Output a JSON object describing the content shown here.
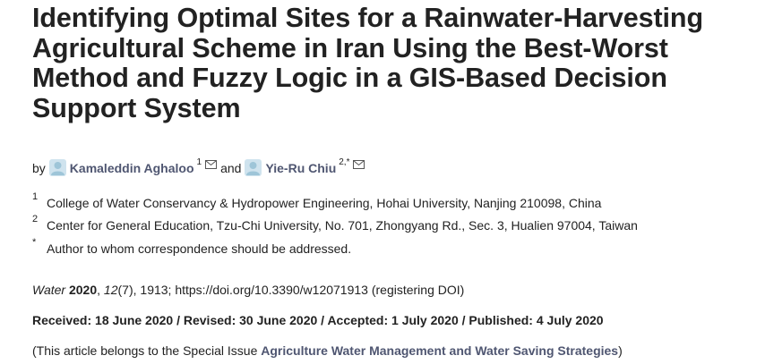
{
  "title": "Identifying Optimal Sites for a Rainwater-Harvesting Agricultural Scheme in Iran Using the Best-Worst Method and Fuzzy Logic in a GIS-Based Decision Support System",
  "authors": {
    "by": "by",
    "and": "and",
    "list": [
      {
        "name": "Kamaleddin Aghaloo",
        "sup": "1",
        "icon": "user-avatar-icon",
        "mail_icon": "envelope-icon"
      },
      {
        "name": "Yie-Ru Chiu",
        "sup": "2,*",
        "icon": "user-avatar-icon",
        "mail_icon": "envelope-icon"
      }
    ]
  },
  "affiliations": [
    {
      "num": "1",
      "text": "College of Water Conservancy & Hydropower Engineering, Hohai University, Nanjing 210098, China"
    },
    {
      "num": "2",
      "text": "Center for General Education, Tzu-Chi University, No. 701, Zhongyang Rd., Sec. 3, Hualien 97004, Taiwan"
    },
    {
      "num": "*",
      "text": "Author to whom correspondence should be addressed."
    }
  ],
  "citation": {
    "journal": "Water",
    "year": "2020",
    "volume": "12",
    "issue": "(7)",
    "rest": ", 1913; https://doi.org/10.3390/w12071913 (registering DOI)"
  },
  "dates": "Received: 18 June 2020 / Revised: 30 June 2020 / Accepted: 1 July 2020 / Published: 4 July 2020",
  "special_issue": {
    "prefix": "(This article belongs to the Special Issue ",
    "link": "Agriculture Water Management and Water Saving Strategies",
    "suffix": ")"
  },
  "colors": {
    "link": "#4f5671",
    "text": "#222222",
    "avatar": "#9ec5d8"
  }
}
